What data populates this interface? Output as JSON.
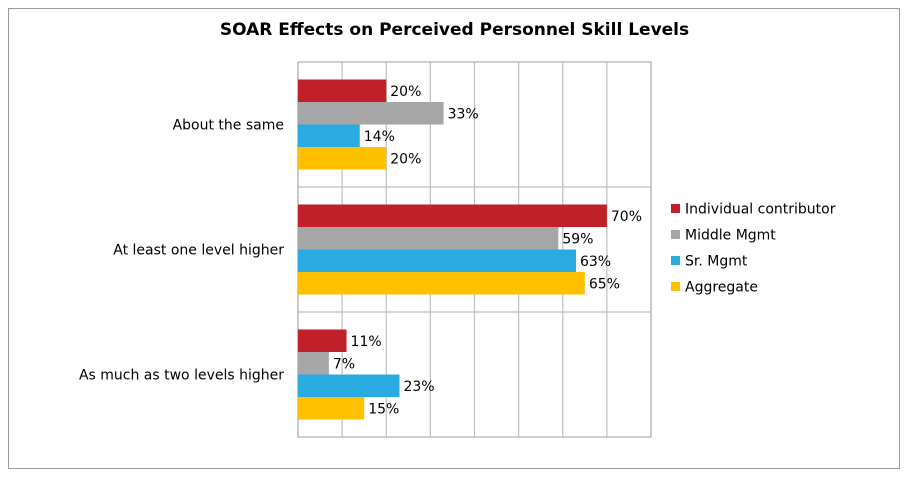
{
  "chart_data": {
    "type": "bar",
    "orientation": "horizontal",
    "title": "SOAR Effects on Perceived Personnel Skill Levels",
    "xlabel": "",
    "ylabel": "",
    "xlim": [
      0,
      80
    ],
    "grid": true,
    "legend_position": "right",
    "value_suffix": "%",
    "categories": [
      "About the same",
      "At least one level higher",
      "As much as two levels higher"
    ],
    "series": [
      {
        "name": "Individual contributor",
        "color": "#c0202a",
        "values": [
          20,
          70,
          11
        ]
      },
      {
        "name": "Middle Mgmt",
        "color": "#a6a6a6",
        "values": [
          33,
          59,
          7
        ]
      },
      {
        "name": "Sr. Mgmt",
        "color": "#29abe2",
        "values": [
          14,
          63,
          23
        ]
      },
      {
        "name": "Aggregate",
        "color": "#ffc000",
        "values": [
          20,
          65,
          15
        ]
      }
    ]
  }
}
